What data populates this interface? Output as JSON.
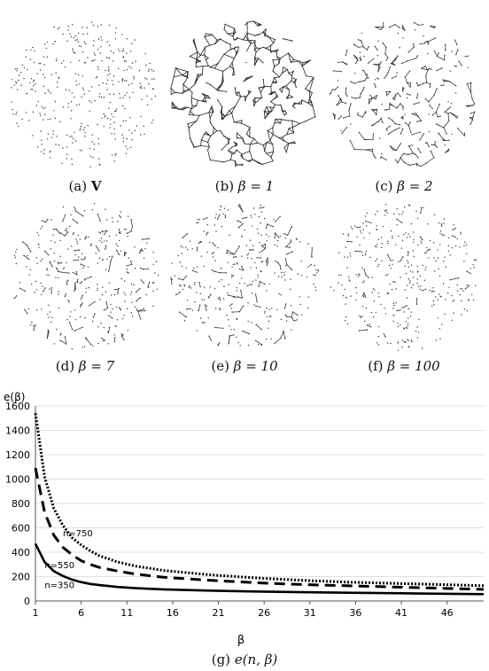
{
  "panels": [
    {
      "id": "a",
      "tag": "(a)",
      "label": "V",
      "label_bold": true,
      "style": "points",
      "density": 420
    },
    {
      "id": "b",
      "tag": "(b)",
      "label": "β = 1",
      "label_bold": false,
      "style": "dense-network",
      "density": 1
    },
    {
      "id": "c",
      "tag": "(c)",
      "label": "β = 2",
      "label_bold": false,
      "style": "network",
      "density": 2
    },
    {
      "id": "d",
      "tag": "(d)",
      "label": "β = 7",
      "label_bold": false,
      "style": "sparse",
      "density": 7
    },
    {
      "id": "e",
      "tag": "(e)",
      "label": "β = 10",
      "label_bold": false,
      "style": "sparse",
      "density": 10
    },
    {
      "id": "f",
      "tag": "(f)",
      "label": "β = 100",
      "label_bold": false,
      "style": "very-sparse",
      "density": 100
    }
  ],
  "chart_caption": {
    "tag": "(g)",
    "label": "e(n, β)"
  },
  "chart_data": {
    "type": "line",
    "ylabel": "e(β)",
    "xlabel": "β",
    "ylim": [
      0,
      1600
    ],
    "xlim": [
      1,
      50
    ],
    "yticks": [
      0,
      200,
      400,
      600,
      800,
      1000,
      1200,
      1400,
      1600
    ],
    "xticks": [
      1,
      6,
      11,
      16,
      21,
      26,
      31,
      36,
      41,
      46
    ],
    "grid": "horizontal",
    "series": [
      {
        "name": "n=750",
        "style": "dotted",
        "x": [
          1,
          2,
          3,
          4,
          5,
          6,
          7,
          8,
          10,
          12,
          15,
          20,
          25,
          30,
          35,
          40,
          45,
          50
        ],
        "y": [
          1540,
          1020,
          760,
          620,
          520,
          460,
          410,
          370,
          320,
          285,
          250,
          215,
          190,
          170,
          155,
          145,
          135,
          125
        ]
      },
      {
        "name": "n=550",
        "style": "dashed",
        "x": [
          1,
          2,
          3,
          4,
          5,
          6,
          7,
          8,
          10,
          12,
          15,
          20,
          25,
          30,
          35,
          40,
          45,
          50
        ],
        "y": [
          1090,
          730,
          540,
          440,
          380,
          330,
          300,
          275,
          245,
          220,
          195,
          170,
          150,
          135,
          125,
          115,
          105,
          95
        ]
      },
      {
        "name": "n=350",
        "style": "solid",
        "x": [
          1,
          2,
          3,
          4,
          5,
          6,
          7,
          8,
          10,
          12,
          15,
          20,
          25,
          30,
          35,
          40,
          45,
          50
        ],
        "y": [
          470,
          320,
          245,
          205,
          175,
          155,
          140,
          130,
          115,
          105,
          95,
          85,
          78,
          72,
          68,
          64,
          60,
          56
        ]
      }
    ],
    "annotations": [
      {
        "text": "n=750",
        "x": 4,
        "y": 530
      },
      {
        "text": "n=550",
        "x": 2,
        "y": 270
      },
      {
        "text": "n=350",
        "x": 2,
        "y": 105
      }
    ]
  }
}
